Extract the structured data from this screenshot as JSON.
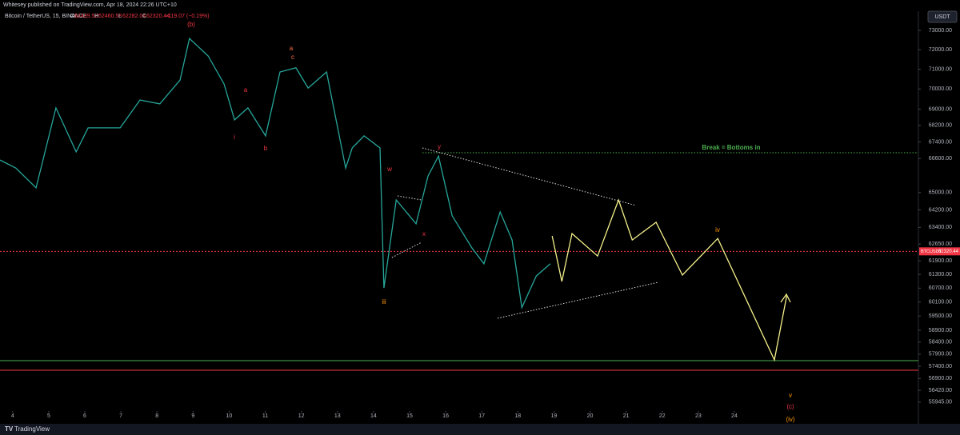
{
  "header": {
    "publisher": "Whitesey published on TradingView.com, Apr 18, 2024 22:26 UTC+10",
    "symbol": "Bitcoin / TetherUS, 15, BINANCE",
    "ohlc": [
      {
        "label": "O",
        "value": 62439.52
      },
      {
        "label": "H",
        "value": 62460.58
      },
      {
        "label": "L",
        "value": 62282.04
      },
      {
        "label": "C",
        "value": 62320.44
      }
    ],
    "change": "−119.07 (−0.19%)",
    "currency": "USDT"
  },
  "footer": {
    "brand": "TradingView"
  },
  "chart_data": {
    "type": "line",
    "log_scale": true,
    "xlim": [
      3.65,
      29.1
    ],
    "xticks": [
      4,
      5,
      6,
      7,
      8,
      9,
      10,
      11,
      12,
      13,
      14,
      15,
      16,
      17,
      18,
      19,
      20,
      21,
      22,
      23,
      24
    ],
    "ylim": [
      55590,
      74010
    ],
    "yticks": [
      {
        "value": 73000,
        "label": "73000.00"
      },
      {
        "value": 72000,
        "label": "72000.00"
      },
      {
        "value": 71000,
        "label": "71000.00"
      },
      {
        "value": 70000,
        "label": "70000.00"
      },
      {
        "value": 69000,
        "label": "69000.00"
      },
      {
        "value": 68200,
        "label": "68200.00"
      },
      {
        "value": 67400,
        "label": "67400.00"
      },
      {
        "value": 66600,
        "label": "66600.00"
      },
      {
        "value": 65000,
        "label": "65000.00"
      },
      {
        "value": 64200,
        "label": "64200.00"
      },
      {
        "value": 63400,
        "label": "63400.00"
      },
      {
        "value": 62650,
        "label": "62650.00"
      },
      {
        "value": 61900,
        "label": "61900.00"
      },
      {
        "value": 61300,
        "label": "61300.00"
      },
      {
        "value": 60700,
        "label": "60700.00"
      },
      {
        "value": 60100,
        "label": "60100.00"
      },
      {
        "value": 59500,
        "label": "59500.00"
      },
      {
        "value": 58900,
        "label": "58900.00"
      },
      {
        "value": 58400,
        "label": "58400.00"
      },
      {
        "value": 57900,
        "label": "57900.00"
      },
      {
        "value": 57400,
        "label": "57400.00"
      },
      {
        "value": 56900,
        "label": "56900.00"
      },
      {
        "value": 56420,
        "label": "56420.00"
      },
      {
        "value": 55945,
        "label": "55945.00"
      }
    ],
    "series": [
      {
        "color": "#26a69a",
        "x": [
          3.65,
          4.09,
          4.65,
          5.2,
          5.76,
          6.09,
          6.98,
          7.53,
          8.08,
          8.64,
          8.9,
          9.42,
          9.86,
          10.15,
          10.52,
          11.01,
          11.41,
          11.85,
          12.19,
          12.7,
          13.23,
          13.41,
          13.74,
          14.18,
          14.29,
          14.63,
          15.18,
          15.51,
          15.8,
          16.18,
          16.73,
          17.06,
          17.51,
          17.84,
          18.11,
          18.51,
          18.9
        ],
        "values": [
          66530,
          66150,
          65220,
          69060,
          66920,
          68080,
          68080,
          69450,
          69260,
          70450,
          72580,
          71670,
          70250,
          68470,
          69060,
          67690,
          70860,
          71070,
          70050,
          70860,
          66150,
          67110,
          67690,
          67110,
          60710,
          64660,
          63560,
          65770,
          66720,
          63930,
          62470,
          61770,
          64100,
          62830,
          59860,
          61230,
          61770
        ]
      },
      {
        "color": "#f5f08a",
        "x": [
          18.95,
          19.22,
          19.5,
          20.21,
          20.79,
          21.17,
          21.83,
          22.56,
          23.54,
          25.11,
          25.45
        ],
        "values": [
          63010,
          60990,
          63120,
          62110,
          64660,
          62830,
          63630,
          61270,
          62900,
          57660,
          60370
        ]
      }
    ],
    "current_price": {
      "label": "BTCUSDT",
      "value": 62320.44,
      "color": "#f23645"
    },
    "annotations": [
      "(b)",
      "a",
      "c",
      "a",
      "i",
      "b",
      "w",
      "y",
      "x",
      "iii",
      "iv",
      "v",
      "(c)",
      "(iv)",
      "Break = Bottoms in"
    ]
  }
}
